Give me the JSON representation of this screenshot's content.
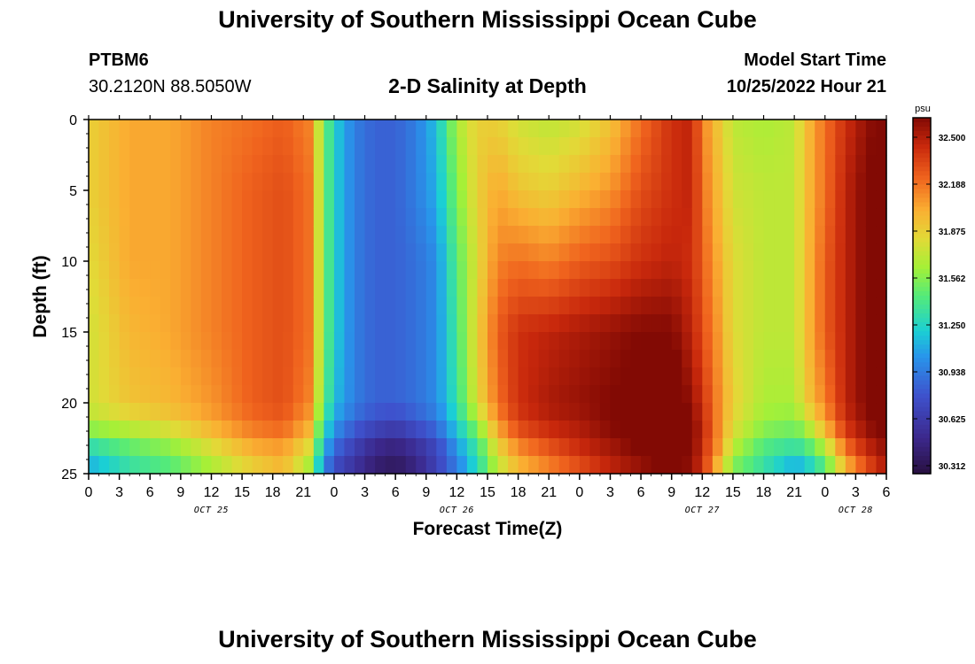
{
  "header": {
    "title": "University of Southern Mississippi Ocean Cube",
    "station_id": "PTBM6",
    "coordinates": "30.2120N  88.5050W",
    "chart_title": "2-D Salinity at Depth",
    "model_start_label": "Model Start Time",
    "model_start_value": "10/25/2022 Hour 21"
  },
  "footer": {
    "title": "University of Southern Mississippi Ocean Cube"
  },
  "chart_data": {
    "type": "heatmap",
    "title": "2-D Salinity at Depth",
    "xlabel": "Forecast Time(Z)",
    "ylabel": "Depth (ft)",
    "x_hours_range": [
      0,
      78
    ],
    "y_range": [
      0,
      25
    ],
    "y_ticks": [
      0,
      5,
      10,
      15,
      20,
      25
    ],
    "x_tick_labels": [
      "0",
      "3",
      "6",
      "9",
      "12",
      "15",
      "18",
      "21",
      "0",
      "3",
      "6",
      "9",
      "12",
      "15",
      "18",
      "21",
      "0",
      "3",
      "6",
      "9",
      "12",
      "15",
      "18",
      "21",
      "0",
      "3",
      "6"
    ],
    "date_labels": [
      {
        "label": "OCT 25",
        "hour": 12
      },
      {
        "label": "OCT 26",
        "hour": 36
      },
      {
        "label": "OCT 27",
        "hour": 60
      },
      {
        "label": "OCT 28",
        "hour": 75
      }
    ],
    "colorbar": {
      "unit": "psu",
      "min": 30.312,
      "max": 32.5,
      "tick_labels": [
        "32.500",
        "32.188",
        "31.875",
        "31.562",
        "31.250",
        "30.938",
        "30.625",
        "30.312"
      ]
    },
    "profiles": {
      "depth_ft": [
        0,
        5,
        10,
        15,
        20,
        21.5,
        22.5,
        23.5,
        24.5,
        25
      ],
      "hours": [
        0,
        4,
        8,
        12,
        16,
        19,
        21.5,
        23,
        24,
        26,
        28,
        30,
        32,
        34,
        36,
        38,
        40,
        42,
        45,
        48,
        51,
        54,
        57,
        59,
        60,
        61.5,
        63,
        66,
        69,
        70,
        72,
        74,
        76,
        78
      ],
      "salinity_psu": [
        [
          31.8,
          31.8,
          31.75,
          31.7,
          31.7,
          31.6,
          31.4,
          31.2,
          31.1,
          31.0
        ],
        [
          31.95,
          31.95,
          31.95,
          31.9,
          31.85,
          31.7,
          31.5,
          31.4,
          31.3,
          31.2
        ],
        [
          31.95,
          31.95,
          31.95,
          31.95,
          31.9,
          31.8,
          31.6,
          31.5,
          31.4,
          31.3
        ],
        [
          32.05,
          32.05,
          32.05,
          32.05,
          32.0,
          31.95,
          31.8,
          31.7,
          31.6,
          31.5
        ],
        [
          32.1,
          32.15,
          32.15,
          32.15,
          32.15,
          32.1,
          32.0,
          31.9,
          31.8,
          31.7
        ],
        [
          32.15,
          32.2,
          32.2,
          32.2,
          32.2,
          32.15,
          32.05,
          31.95,
          31.9,
          31.85
        ],
        [
          32.05,
          32.1,
          32.1,
          32.1,
          32.05,
          31.95,
          31.85,
          31.7,
          31.6,
          31.5
        ],
        [
          31.5,
          31.5,
          31.5,
          31.5,
          31.45,
          31.3,
          31.2,
          31.1,
          31.0,
          30.9
        ],
        [
          31.2,
          31.2,
          31.2,
          31.2,
          31.15,
          31.05,
          30.95,
          30.85,
          30.75,
          30.7
        ],
        [
          30.95,
          30.95,
          30.95,
          30.95,
          30.95,
          30.85,
          30.75,
          30.65,
          30.6,
          30.55
        ],
        [
          30.85,
          30.85,
          30.85,
          30.85,
          30.85,
          30.75,
          30.6,
          30.5,
          30.45,
          30.4
        ],
        [
          30.85,
          30.85,
          30.85,
          30.85,
          30.85,
          30.7,
          30.55,
          30.45,
          30.4,
          30.35
        ],
        [
          30.95,
          30.95,
          30.9,
          30.9,
          30.9,
          30.8,
          30.65,
          30.55,
          30.5,
          30.45
        ],
        [
          31.15,
          31.1,
          31.0,
          31.0,
          31.0,
          30.9,
          30.8,
          30.7,
          30.7,
          30.65
        ],
        [
          31.6,
          31.5,
          31.4,
          31.35,
          31.3,
          31.2,
          31.1,
          31.0,
          30.95,
          30.95
        ],
        [
          31.8,
          31.8,
          31.75,
          31.8,
          31.75,
          31.55,
          31.4,
          31.3,
          31.25,
          31.25
        ],
        [
          31.8,
          31.95,
          32.05,
          32.15,
          32.1,
          32.0,
          31.85,
          31.75,
          31.65,
          31.6
        ],
        [
          31.7,
          31.85,
          32.1,
          32.3,
          32.3,
          32.25,
          32.1,
          32.0,
          31.9,
          31.85
        ],
        [
          31.65,
          31.8,
          32.05,
          32.35,
          32.4,
          32.35,
          32.25,
          32.15,
          32.05,
          32.0
        ],
        [
          31.7,
          31.9,
          32.15,
          32.4,
          32.45,
          32.4,
          32.35,
          32.3,
          32.2,
          32.15
        ],
        [
          31.85,
          32.0,
          32.2,
          32.45,
          32.5,
          32.5,
          32.45,
          32.4,
          32.35,
          32.3
        ],
        [
          32.1,
          32.2,
          32.3,
          32.5,
          32.55,
          32.55,
          32.55,
          32.5,
          32.45,
          32.45
        ],
        [
          32.3,
          32.3,
          32.35,
          32.5,
          32.6,
          32.6,
          32.6,
          32.6,
          32.55,
          32.55
        ],
        [
          32.35,
          32.35,
          32.3,
          32.35,
          32.45,
          32.5,
          32.5,
          32.5,
          32.45,
          32.45
        ],
        [
          32.05,
          32.1,
          32.15,
          32.2,
          32.3,
          32.35,
          32.35,
          32.3,
          32.3,
          32.25
        ],
        [
          31.85,
          31.9,
          31.95,
          32.0,
          32.05,
          32.05,
          32.05,
          32.0,
          31.9,
          31.85
        ],
        [
          31.65,
          31.7,
          31.75,
          31.75,
          31.8,
          31.75,
          31.7,
          31.6,
          31.5,
          31.45
        ],
        [
          31.6,
          31.65,
          31.65,
          31.65,
          31.6,
          31.55,
          31.45,
          31.35,
          31.3,
          31.25
        ],
        [
          31.65,
          31.65,
          31.65,
          31.65,
          31.6,
          31.5,
          31.4,
          31.25,
          31.1,
          31.0
        ],
        [
          31.85,
          31.85,
          31.85,
          31.85,
          31.8,
          31.6,
          31.45,
          31.3,
          31.15,
          31.05
        ],
        [
          32.1,
          32.1,
          32.15,
          32.15,
          32.05,
          31.95,
          31.75,
          31.55,
          31.4,
          31.3
        ],
        [
          32.3,
          32.35,
          32.35,
          32.35,
          32.35,
          32.3,
          32.2,
          32.05,
          31.9,
          31.8
        ],
        [
          32.45,
          32.5,
          32.5,
          32.5,
          32.5,
          32.45,
          32.4,
          32.3,
          32.2,
          32.1
        ],
        [
          32.55,
          32.6,
          32.6,
          32.6,
          32.6,
          32.6,
          32.5,
          32.45,
          32.4,
          32.35
        ]
      ]
    }
  }
}
